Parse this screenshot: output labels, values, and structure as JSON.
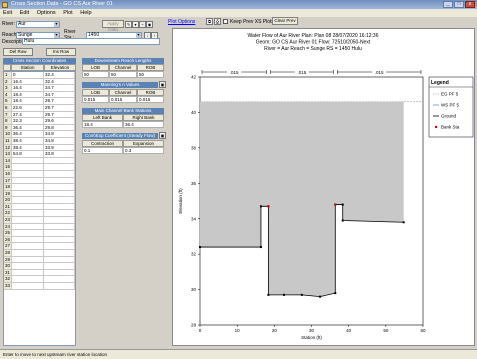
{
  "window": {
    "title": "Cross Section Data - GO CS Aur River 01",
    "min": "_",
    "max": "□",
    "close": "x"
  },
  "menu": [
    "Exit",
    "Edit",
    "Options",
    "Plot",
    "Help"
  ],
  "left": {
    "river_label": "River:",
    "river_value": "Aur",
    "apply_label": "Apply Data",
    "reach_label": "Reach:",
    "reach_value": "Sunge",
    "rs_label": "River Sta.:",
    "rs_value": "1450",
    "desc_label": "Description",
    "desc_value": "Hulu",
    "del_row": "Del Row",
    "ins_row": "Ins Row",
    "sta_title": "Cross Section Coordinates",
    "sta_headers": [
      "Station",
      "Elevation"
    ],
    "stations": [
      [
        "0",
        "32.4"
      ],
      [
        "16.4",
        "32.4"
      ],
      [
        "16.4",
        "34.7"
      ],
      [
        "18.4",
        "34.7"
      ],
      [
        "18.4",
        "29.7"
      ],
      [
        "22.6",
        "29.7"
      ],
      [
        "27.4",
        "29.7"
      ],
      [
        "32.3",
        "29.6"
      ],
      [
        "36.4",
        "29.8"
      ],
      [
        "36.4",
        "34.8"
      ],
      [
        "38.4",
        "34.8"
      ],
      [
        "38.4",
        "33.9"
      ],
      [
        "54.8",
        "33.8"
      ]
    ],
    "rows_total": 33,
    "reach_len_title": "Downstream Reach Lengths",
    "reach_len_headers": [
      "LOB",
      "Channel",
      "ROB"
    ],
    "reach_len_values": [
      "50",
      "50",
      "50"
    ],
    "manning_title": "Manning's n Values",
    "manning_headers": [
      "LOB",
      "Channel",
      "ROB"
    ],
    "manning_values": [
      "0.015",
      "0.015",
      "0.015"
    ],
    "bank_title": "Main Channel Bank Stations",
    "bank_headers": [
      "Left Bank",
      "Right Bank"
    ],
    "bank_values": [
      "18.4",
      "36.4"
    ],
    "coef_title": "Cont\\Exp Coefficient (Steady Flow)",
    "coef_headers": [
      "Contraction",
      "Expansion"
    ],
    "coef_values": [
      "0.1",
      "0.3"
    ]
  },
  "plot_toolbar": {
    "plot_options": "Plot Options",
    "keep_prev": "Keep Prev XS Plots",
    "clear_prev": "Clear Prev"
  },
  "status": "Enter to move to next upstream river station location",
  "chart_data": {
    "type": "line",
    "title_lines": [
      "Water Flow of Aur River     Plan: Plan 08    28/07/2020  16:12:36",
      "Geom: GO CS Aur River 01    Flow: 72510/2050-Next",
      "River = Aur    Reach = Sunge        RS = 1450    Hulu"
    ],
    "xlabel": "Station (ft)",
    "ylabel": "Elevation (ft)",
    "xlim": [
      0,
      60
    ],
    "ylim": [
      28,
      42
    ],
    "xticks": [
      "0",
      "10",
      "20",
      "30",
      "40",
      "50",
      "60"
    ],
    "yticks": [
      "28",
      "30",
      "32",
      "34",
      "36",
      "38",
      "40",
      "42"
    ],
    "ground": {
      "x": [
        0,
        16.4,
        16.4,
        18.4,
        18.4,
        22.6,
        27.4,
        32.3,
        36.4,
        36.4,
        38.4,
        38.4,
        54.8
      ],
      "y": [
        32.4,
        32.4,
        34.7,
        34.7,
        29.7,
        29.7,
        29.7,
        29.6,
        29.8,
        34.8,
        34.8,
        33.9,
        33.8
      ]
    },
    "ws_elevation": 40.6,
    "n_values": [
      ".015",
      ".015",
      ".015"
    ],
    "legend": [
      "EG PF 5",
      "WS PF 5",
      "Ground",
      "Bank Sta"
    ],
    "colors": {
      "fill": "#c8c8c8",
      "ground": "#000000",
      "bank": "#cc0000"
    }
  }
}
